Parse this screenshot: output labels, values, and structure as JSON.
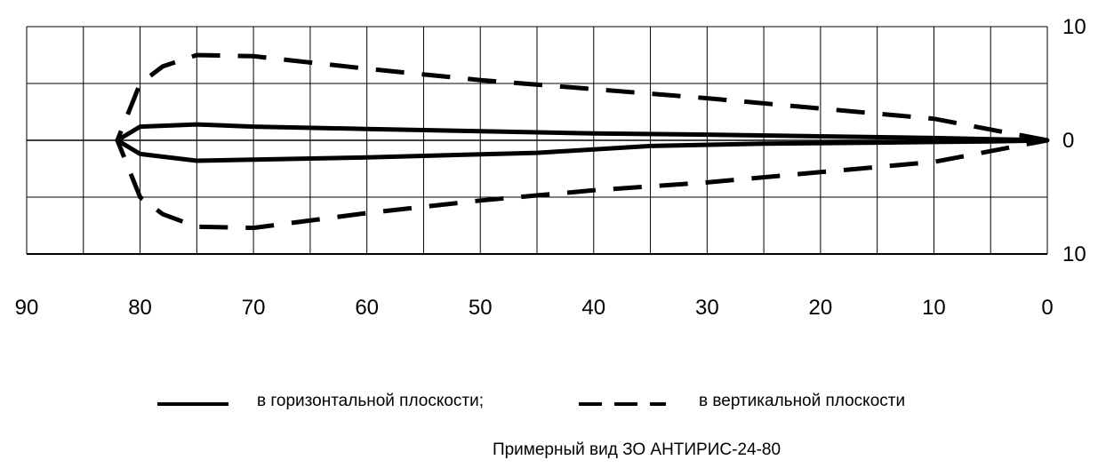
{
  "chart_data": {
    "type": "line",
    "title": "",
    "caption": "Примерный вид ЗО АНТИРИС-24-80",
    "xlabel": "",
    "ylabel": "",
    "xlim": [
      90,
      0
    ],
    "ylim": [
      -10,
      10
    ],
    "grid": true,
    "x_ticks": [
      90,
      80,
      70,
      60,
      50,
      40,
      30,
      20,
      10,
      0
    ],
    "y_ticks": [
      10,
      0,
      -10
    ],
    "y_tick_labels": [
      "10",
      "0",
      "10"
    ],
    "legend_position": "bottom",
    "series": [
      {
        "name": "в горизонтальной плоскости;",
        "style": "solid",
        "color": "#000000",
        "points": [
          [
            0,
            0
          ],
          [
            5,
            0.1
          ],
          [
            10,
            0.2
          ],
          [
            20,
            0.35
          ],
          [
            30,
            0.5
          ],
          [
            40,
            0.6
          ],
          [
            50,
            0.8
          ],
          [
            60,
            1.0
          ],
          [
            70,
            1.2
          ],
          [
            75,
            1.4
          ],
          [
            80,
            1.2
          ],
          [
            82,
            0
          ],
          [
            80,
            -1.2
          ],
          [
            75,
            -1.8
          ],
          [
            70,
            -1.7
          ],
          [
            60,
            -1.5
          ],
          [
            45,
            -1.1
          ],
          [
            35,
            -0.5
          ],
          [
            25,
            -0.3
          ],
          [
            15,
            -0.2
          ],
          [
            10,
            -0.15
          ],
          [
            5,
            -0.1
          ],
          [
            0,
            0
          ]
        ]
      },
      {
        "name": "в вертикальной плоскости",
        "style": "dashed",
        "color": "#000000",
        "points": [
          [
            0,
            0
          ],
          [
            10,
            1.9
          ],
          [
            20,
            2.8
          ],
          [
            30,
            3.7
          ],
          [
            40,
            4.5
          ],
          [
            50,
            5.3
          ],
          [
            60,
            6.3
          ],
          [
            70,
            7.4
          ],
          [
            75,
            7.5
          ],
          [
            78,
            6.5
          ],
          [
            80,
            5.0
          ],
          [
            82,
            0
          ],
          [
            80,
            -5.0
          ],
          [
            78,
            -6.5
          ],
          [
            75,
            -7.6
          ],
          [
            70,
            -7.7
          ],
          [
            60,
            -6.4
          ],
          [
            50,
            -5.3
          ],
          [
            40,
            -4.4
          ],
          [
            30,
            -3.7
          ],
          [
            20,
            -2.8
          ],
          [
            10,
            -1.9
          ],
          [
            0,
            0
          ]
        ]
      }
    ]
  }
}
